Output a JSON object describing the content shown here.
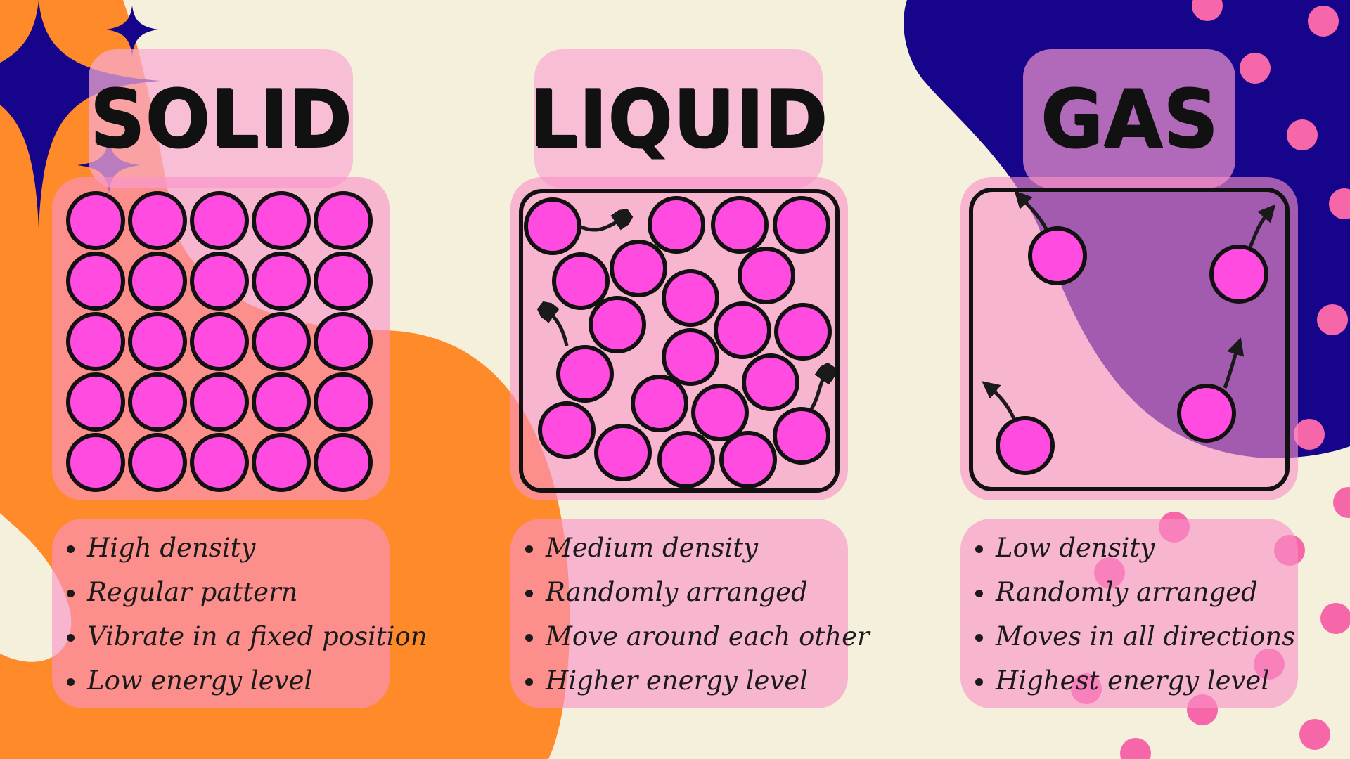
{
  "colors": {
    "background": "#f5f0dc",
    "orange_blob": "#ff8a2a",
    "navy_blob": "#16048a",
    "particle": "#ff4be0",
    "panel_pink": "#f991c8",
    "spot_pink": "#f567a8"
  },
  "states": [
    {
      "title": "SOLID",
      "properties": [
        "High density",
        "Regular pattern",
        "Vibrate in a fixed position",
        "Low energy level"
      ]
    },
    {
      "title": "LIQUID",
      "properties": [
        "Medium density",
        "Randomly arranged",
        "Move around each other",
        "Higher energy level"
      ]
    },
    {
      "title": "GAS",
      "properties": [
        "Low density",
        "Randomly arranged",
        "Moves in all directions",
        "Highest energy level"
      ]
    }
  ]
}
